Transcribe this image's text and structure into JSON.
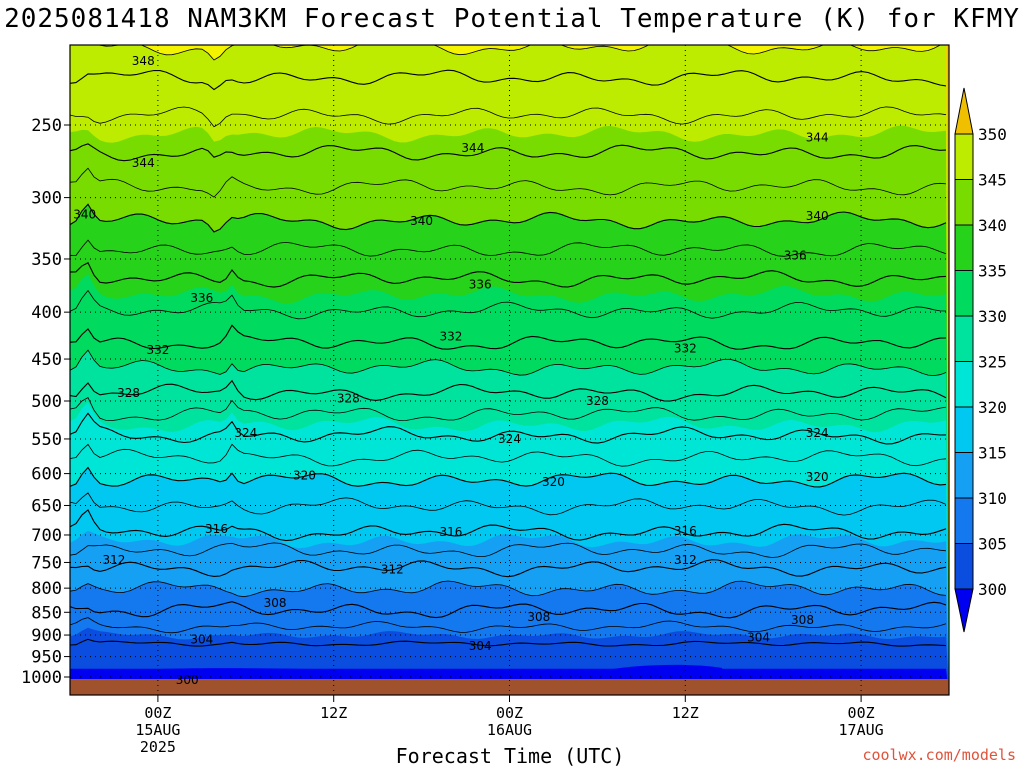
{
  "title": "2025081418 NAM3KM Forecast Potential Temperature (K) for KFMY",
  "credit": "coolwx.com/models",
  "chart_data": {
    "type": "heatmap",
    "title": "2025081418 NAM3KM Forecast Potential Temperature (K) for KFMY",
    "xlabel": "Forecast Time (UTC)",
    "ylabel": "",
    "y_scale": "log-pressure",
    "grid": true,
    "y_ticks": [
      250,
      300,
      350,
      400,
      450,
      500,
      550,
      600,
      650,
      700,
      750,
      800,
      850,
      900,
      950,
      1000
    ],
    "x_ticks": [
      {
        "hours": 6,
        "lines": [
          "00Z",
          "15AUG",
          "2025"
        ]
      },
      {
        "hours": 18,
        "lines": [
          "12Z"
        ]
      },
      {
        "hours": 30,
        "lines": [
          "00Z",
          "16AUG"
        ]
      },
      {
        "hours": 42,
        "lines": [
          "12Z"
        ]
      },
      {
        "hours": 54,
        "lines": [
          "00Z",
          "17AUG"
        ]
      }
    ],
    "x_range_hours": [
      0,
      60
    ],
    "y_range_hpa": [
      200,
      1020
    ],
    "colorbar": {
      "levels": [
        300,
        305,
        310,
        315,
        320,
        325,
        330,
        335,
        340,
        345,
        350
      ],
      "colors": [
        "#0000f0",
        "#0a4ddf",
        "#1478ee",
        "#16a0f4",
        "#00c8f0",
        "#00e6d6",
        "#00e39e",
        "#00da5e",
        "#27d21a",
        "#78dc00",
        "#bdec00",
        "#f4f400"
      ],
      "over_color": "#f0c000"
    },
    "surface_color": "#a0522d",
    "contour_levels": [
      300,
      304,
      308,
      312,
      316,
      320,
      324,
      328,
      332,
      336,
      340,
      344,
      348
    ],
    "contour_labels": [
      {
        "value": 348,
        "hours": 5.0,
        "p": 213
      },
      {
        "value": 344,
        "hours": 5.0,
        "p": 275
      },
      {
        "value": 344,
        "hours": 27.5,
        "p": 265
      },
      {
        "value": 344,
        "hours": 51.0,
        "p": 258
      },
      {
        "value": 340,
        "hours": 1.0,
        "p": 313
      },
      {
        "value": 340,
        "hours": 24.0,
        "p": 318
      },
      {
        "value": 340,
        "hours": 51.0,
        "p": 314
      },
      {
        "value": 336,
        "hours": 9.0,
        "p": 386
      },
      {
        "value": 336,
        "hours": 28.0,
        "p": 373
      },
      {
        "value": 336,
        "hours": 49.5,
        "p": 347
      },
      {
        "value": 332,
        "hours": 6.0,
        "p": 440
      },
      {
        "value": 332,
        "hours": 26.0,
        "p": 425
      },
      {
        "value": 332,
        "hours": 42.0,
        "p": 438
      },
      {
        "value": 328,
        "hours": 4.0,
        "p": 490
      },
      {
        "value": 328,
        "hours": 19.0,
        "p": 497
      },
      {
        "value": 328,
        "hours": 36.0,
        "p": 500
      },
      {
        "value": 324,
        "hours": 12.0,
        "p": 542
      },
      {
        "value": 324,
        "hours": 30.0,
        "p": 550
      },
      {
        "value": 324,
        "hours": 51.0,
        "p": 542
      },
      {
        "value": 320,
        "hours": 16.0,
        "p": 603
      },
      {
        "value": 320,
        "hours": 33.0,
        "p": 613
      },
      {
        "value": 320,
        "hours": 51.0,
        "p": 605
      },
      {
        "value": 316,
        "hours": 10.0,
        "p": 690
      },
      {
        "value": 316,
        "hours": 26.0,
        "p": 695
      },
      {
        "value": 316,
        "hours": 42.0,
        "p": 693
      },
      {
        "value": 312,
        "hours": 3.0,
        "p": 745
      },
      {
        "value": 312,
        "hours": 22.0,
        "p": 763
      },
      {
        "value": 312,
        "hours": 42.0,
        "p": 745
      },
      {
        "value": 308,
        "hours": 14.0,
        "p": 830
      },
      {
        "value": 308,
        "hours": 32.0,
        "p": 860
      },
      {
        "value": 308,
        "hours": 50.0,
        "p": 867
      },
      {
        "value": 304,
        "hours": 9.0,
        "p": 910
      },
      {
        "value": 304,
        "hours": 28.0,
        "p": 925
      },
      {
        "value": 304,
        "hours": 47.0,
        "p": 905
      },
      {
        "value": 300,
        "hours": 8.0,
        "p": 1007
      }
    ]
  }
}
